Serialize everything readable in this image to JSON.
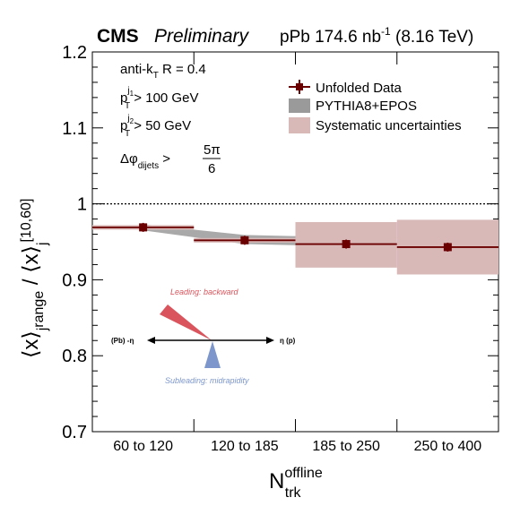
{
  "header": {
    "experiment": "CMS",
    "status": "Preliminary",
    "lumi_prefix": "pPb 174.6 nb",
    "lumi_exp": "-1",
    "energy": "(8.16 TeV)"
  },
  "selection": {
    "line1_a": "anti-k",
    "line1_sub": "T",
    "line1_b": " R = 0.4",
    "line2_main": "p",
    "line2_sub": "T",
    "line2_sup": "j",
    "line2_supsub": "1",
    "line2_rest": " > 100 GeV",
    "line3_main": "p",
    "line3_sub": "T",
    "line3_sup": "j",
    "line3_supsub": "2",
    "line3_rest": " > 50 GeV",
    "line4_main": "Δφ",
    "line4_sub": "dijets",
    "line4_rest": " > ",
    "line4_num": "5π",
    "line4_den": "6"
  },
  "legend": {
    "data_label": "Unfolded Data",
    "mc_label": "PYTHIA8+EPOS",
    "syst_label": "Systematic uncertainties"
  },
  "diagram": {
    "leading": "Leading: backward",
    "subleading": "Subleading: midrapidity",
    "left_label": "(Pb) -η",
    "right_label": "η (p)"
  },
  "colors": {
    "data": "#6b0000",
    "syst": "#d9b8b8",
    "mc": "#9a9a9a",
    "leading": "#d9545c",
    "subleading": "#7d97cc"
  },
  "chart_data": {
    "type": "scatter",
    "xlabel": "N_trk^offline",
    "ylabel": "⟨x⟩_j^range / ⟨x⟩_j^[10,60]",
    "categories": [
      "60 to 120",
      "120 to 185",
      "185 to 250",
      "250 to 400"
    ],
    "ylim": [
      0.7,
      1.2
    ],
    "yticks": [
      "0.7",
      "0.8",
      "0.9",
      "1",
      "1.1",
      "1.2"
    ],
    "reference_line": 1.0,
    "series": [
      {
        "name": "Unfolded Data",
        "values": [
          0.969,
          0.952,
          0.947,
          0.943
        ],
        "syst_low": [
          0.966,
          0.949,
          0.916,
          0.907
        ],
        "syst_high": [
          0.972,
          0.955,
          0.976,
          0.979
        ]
      },
      {
        "name": "PYTHIA8+EPOS",
        "x": [
          0.5,
          1.5,
          2.5
        ],
        "values": [
          0.969,
          0.953,
          0.95
        ],
        "band": [
          0.004,
          0.006,
          0.006
        ]
      }
    ]
  }
}
